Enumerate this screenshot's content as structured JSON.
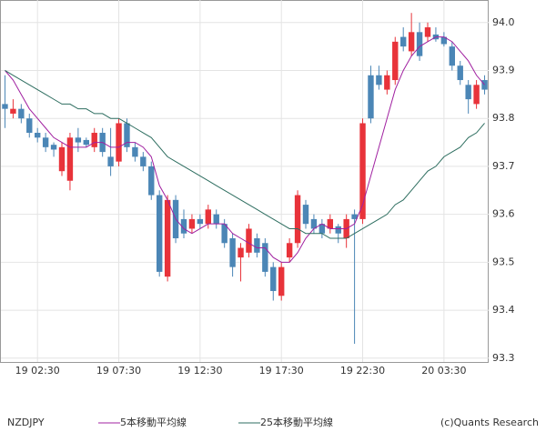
{
  "chart_data": {
    "type": "candlestick",
    "symbol": "NZDJPY",
    "copyright": "(c)Quants Research",
    "categories": [
      null,
      null,
      null,
      null,
      "19 02:30",
      null,
      null,
      null,
      null,
      null,
      null,
      null,
      null,
      null,
      "19 07:30",
      null,
      null,
      null,
      null,
      null,
      null,
      null,
      null,
      null,
      "19 12:30",
      null,
      null,
      null,
      null,
      null,
      null,
      null,
      null,
      null,
      "19 17:30",
      null,
      null,
      null,
      null,
      null,
      null,
      null,
      null,
      null,
      "19 22:30",
      null,
      null,
      null,
      null,
      null,
      null,
      null,
      null,
      null,
      "20 03:30",
      null,
      null,
      null,
      null,
      null
    ],
    "open": [
      93.83,
      93.81,
      93.82,
      93.8,
      93.77,
      93.76,
      93.745,
      93.69,
      93.67,
      93.76,
      93.755,
      93.74,
      93.77,
      93.72,
      93.71,
      93.79,
      93.74,
      93.72,
      93.7,
      93.64,
      93.47,
      93.63,
      93.59,
      93.57,
      93.59,
      93.58,
      93.6,
      93.58,
      93.55,
      93.51,
      93.52,
      93.55,
      93.54,
      93.49,
      93.43,
      93.51,
      93.54,
      93.62,
      93.59,
      93.58,
      93.57,
      93.575,
      93.55,
      93.6,
      93.59,
      93.89,
      93.89,
      93.86,
      93.88,
      93.97,
      93.94,
      93.98,
      93.97,
      93.975,
      93.97,
      93.95,
      93.91,
      93.87,
      93.83,
      93.88
    ],
    "high": [
      93.89,
      93.84,
      93.83,
      93.81,
      93.78,
      93.77,
      93.75,
      93.75,
      93.77,
      93.78,
      93.76,
      93.78,
      93.78,
      93.78,
      93.8,
      93.8,
      93.75,
      93.73,
      93.71,
      93.65,
      93.64,
      93.64,
      93.61,
      93.6,
      93.6,
      93.62,
      93.61,
      93.59,
      93.56,
      93.54,
      93.58,
      93.56,
      93.55,
      93.5,
      93.5,
      93.55,
      93.65,
      93.63,
      93.6,
      93.59,
      93.6,
      93.58,
      93.6,
      93.61,
      93.8,
      93.91,
      93.91,
      93.9,
      93.97,
      93.99,
      94.02,
      94.0,
      94.0,
      93.99,
      93.98,
      93.96,
      93.92,
      93.88,
      93.88,
      93.89
    ],
    "low": [
      93.78,
      93.8,
      93.79,
      93.76,
      93.75,
      93.73,
      93.72,
      93.68,
      93.65,
      93.73,
      93.74,
      93.73,
      93.72,
      93.68,
      93.7,
      93.73,
      93.71,
      93.69,
      93.63,
      93.47,
      93.46,
      93.54,
      93.55,
      93.56,
      93.57,
      93.57,
      93.57,
      93.53,
      93.47,
      93.46,
      93.51,
      93.51,
      93.47,
      93.42,
      93.42,
      93.5,
      93.53,
      93.57,
      93.56,
      93.55,
      93.56,
      93.54,
      93.53,
      93.33,
      93.58,
      93.79,
      93.86,
      93.85,
      93.87,
      93.94,
      93.93,
      93.92,
      93.96,
      93.96,
      93.95,
      93.9,
      93.87,
      93.81,
      93.82,
      93.85
    ],
    "close": [
      93.82,
      93.82,
      93.8,
      93.77,
      93.76,
      93.74,
      93.735,
      93.74,
      93.76,
      93.75,
      93.745,
      93.77,
      93.73,
      93.7,
      93.79,
      93.74,
      93.72,
      93.7,
      93.64,
      93.48,
      93.63,
      93.55,
      93.56,
      93.59,
      93.58,
      93.61,
      93.58,
      93.54,
      93.49,
      93.53,
      93.57,
      93.52,
      93.48,
      93.44,
      93.49,
      93.54,
      93.64,
      93.58,
      93.57,
      93.56,
      93.59,
      93.56,
      93.59,
      93.59,
      93.79,
      93.8,
      93.87,
      93.89,
      93.96,
      93.95,
      93.98,
      93.93,
      93.99,
      93.965,
      93.955,
      93.91,
      93.88,
      93.84,
      93.87,
      93.86
    ],
    "up_color": "#e8333a",
    "down_color": "#4b86b6",
    "series": [
      {
        "name": "5本移動平均線",
        "color": "#a020a0",
        "values": [
          93.9,
          93.88,
          93.85,
          93.82,
          93.8,
          93.78,
          93.76,
          93.75,
          93.74,
          93.74,
          93.74,
          93.75,
          93.75,
          93.74,
          93.74,
          93.75,
          93.75,
          93.74,
          93.72,
          93.66,
          93.63,
          93.59,
          93.57,
          93.56,
          93.57,
          93.58,
          93.58,
          93.58,
          93.56,
          93.55,
          93.54,
          93.53,
          93.53,
          93.51,
          93.5,
          93.5,
          93.52,
          93.55,
          93.57,
          93.58,
          93.57,
          93.57,
          93.57,
          93.58,
          93.62,
          93.68,
          93.74,
          93.8,
          93.86,
          93.9,
          93.93,
          93.95,
          93.96,
          93.97,
          93.97,
          93.96,
          93.94,
          93.92,
          93.89,
          93.87
        ]
      },
      {
        "name": "25本移動平均線",
        "color": "#2e6e60",
        "values": [
          93.9,
          93.89,
          93.88,
          93.87,
          93.86,
          93.85,
          93.84,
          93.83,
          93.83,
          93.82,
          93.82,
          93.81,
          93.81,
          93.8,
          93.8,
          93.79,
          93.78,
          93.77,
          93.76,
          93.74,
          93.72,
          93.71,
          93.7,
          93.69,
          93.68,
          93.67,
          93.66,
          93.65,
          93.64,
          93.63,
          93.62,
          93.61,
          93.6,
          93.59,
          93.58,
          93.57,
          93.57,
          93.56,
          93.56,
          93.56,
          93.55,
          93.55,
          93.55,
          93.56,
          93.57,
          93.58,
          93.59,
          93.6,
          93.62,
          93.63,
          93.65,
          93.67,
          93.69,
          93.7,
          93.72,
          93.73,
          93.74,
          93.76,
          93.77,
          93.79
        ]
      }
    ],
    "ylim": [
      93.292,
      94.047
    ],
    "yticks": [
      {
        "value": 93.3,
        "label": "93.3"
      },
      93.4,
      93.5,
      93.6,
      93.7,
      93.8,
      93.9,
      {
        "value": 94,
        "label": "94.0"
      }
    ],
    "grid": true
  }
}
